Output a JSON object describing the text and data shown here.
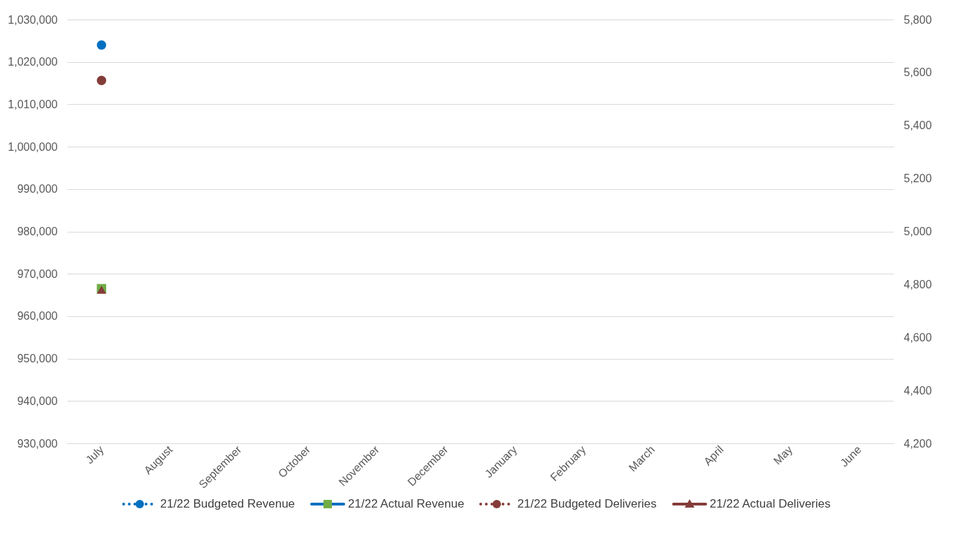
{
  "chart_data": {
    "type": "line",
    "categories": [
      "July",
      "August",
      "September",
      "October",
      "November",
      "December",
      "January",
      "February",
      "March",
      "April",
      "May",
      "June"
    ],
    "series": [
      {
        "name": "21/22 Budgeted Revenue",
        "color": "#0070c0",
        "marker": "circle",
        "line_style": "dotted",
        "values": [
          1024000,
          null,
          null,
          null,
          null,
          null,
          null,
          null,
          null,
          null,
          null,
          null
        ]
      },
      {
        "name": "21/22 Actual Revenue",
        "color": "#0070c0",
        "colors": [
          "#70ad47",
          "#70ad47",
          "#70ad47",
          "#70ad47",
          "#70ad47",
          "#70ad47",
          "#70ad47",
          "#70ad47",
          "#70ad47",
          "#70ad47",
          "#70ad47",
          "#70ad47"
        ],
        "marker": "square",
        "line_style": "solid",
        "values": [
          966500,
          null,
          null,
          null,
          null,
          null,
          null,
          null,
          null,
          null,
          null,
          null
        ]
      },
      {
        "name": "21/22 Budgeted Deliveries",
        "color": "#843c39",
        "marker": "circle",
        "line_style": "dotted",
        "axis": "y2",
        "values": [
          5570,
          null,
          null,
          null,
          null,
          null,
          null,
          null,
          null,
          null,
          null,
          null
        ]
      },
      {
        "name": "21/22 Actual Deliveries",
        "color": "#843c39",
        "marker": "triangle",
        "line_style": "solid",
        "axis": "y2",
        "values": [
          4780,
          null,
          null,
          null,
          null,
          null,
          null,
          null,
          null,
          null,
          null,
          null
        ]
      }
    ],
    "ylim": [
      930000,
      1030000
    ],
    "yticks": [
      {
        "value": 930000,
        "label": "930,000"
      },
      {
        "value": 940000,
        "label": "940,000"
      },
      {
        "value": 950000,
        "label": "950,000"
      },
      {
        "value": 960000,
        "label": "960,000"
      },
      {
        "value": 970000,
        "label": "970,000"
      },
      {
        "value": 980000,
        "label": "980,000"
      },
      {
        "value": 990000,
        "label": "990,000"
      },
      {
        "value": 1000000,
        "label": "1,000,000"
      },
      {
        "value": 1010000,
        "label": "1,010,000"
      },
      {
        "value": 1020000,
        "label": "1,020,000"
      },
      {
        "value": 1030000,
        "label": "1,030,000"
      }
    ],
    "y2lim": [
      4200,
      5800
    ],
    "y2ticks": [
      {
        "value": 4200,
        "label": "4,200"
      },
      {
        "value": 4400,
        "label": "4,400"
      },
      {
        "value": 4600,
        "label": "4,600"
      },
      {
        "value": 4800,
        "label": "4,800"
      },
      {
        "value": 5000,
        "label": "5,000"
      },
      {
        "value": 5200,
        "label": "5,200"
      },
      {
        "value": 5400,
        "label": "5,400"
      },
      {
        "value": 5600,
        "label": "5,600"
      },
      {
        "value": 5800,
        "label": "5,800"
      }
    ],
    "grid": "y",
    "legend": "bottom"
  }
}
